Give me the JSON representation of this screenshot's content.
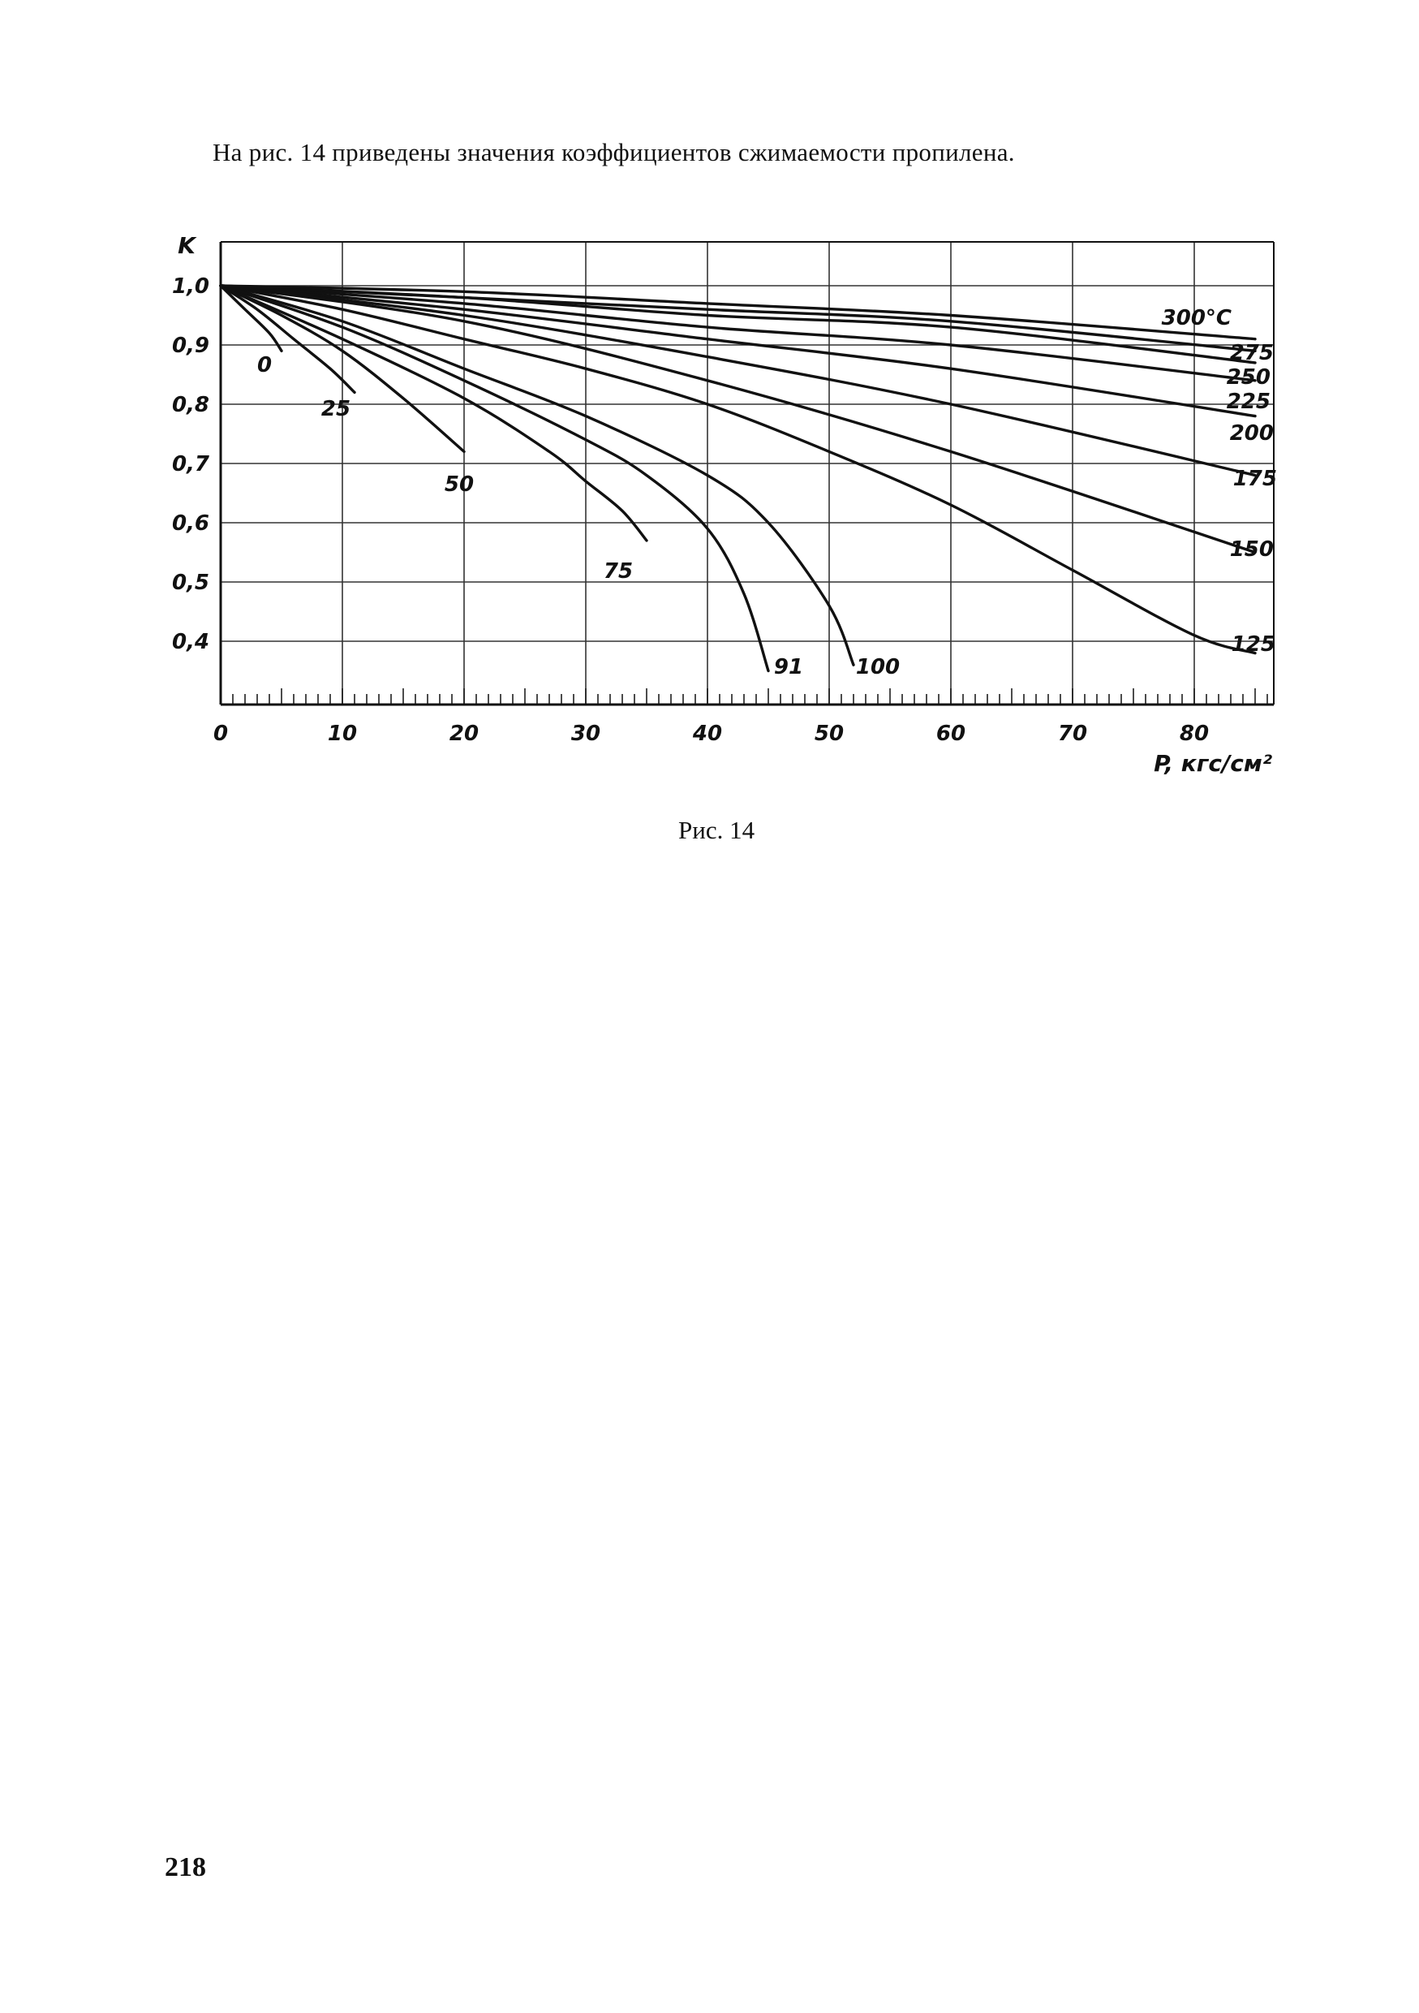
{
  "document": {
    "intro_text": "На рис. 14 приведены значения коэффициентов сжимаемости пропилена.",
    "caption": "Рис. 14",
    "page_number": "218"
  },
  "chart_data": {
    "type": "line",
    "title": "",
    "xlabel": "P, кгс/см²",
    "ylabel": "K",
    "xlim": [
      0,
      88
    ],
    "ylim": [
      0.3,
      1.05
    ],
    "x_ticks": [
      "0",
      "10",
      "20",
      "30",
      "40",
      "50",
      "60",
      "70",
      "80"
    ],
    "y_ticks": [
      "0,4",
      "0,5",
      "0,6",
      "0,7",
      "0,8",
      "0,9",
      "1,0"
    ],
    "grid": true,
    "series": [
      {
        "name": "0",
        "x": [
          0,
          2,
          4,
          5
        ],
        "y": [
          1.0,
          0.96,
          0.92,
          0.89
        ]
      },
      {
        "name": "25",
        "x": [
          0,
          3,
          6,
          9,
          11
        ],
        "y": [
          1.0,
          0.96,
          0.91,
          0.86,
          0.82
        ]
      },
      {
        "name": "50",
        "x": [
          0,
          5,
          10,
          15,
          20
        ],
        "y": [
          1.0,
          0.95,
          0.89,
          0.81,
          0.72
        ]
      },
      {
        "name": "75",
        "x": [
          0,
          10,
          20,
          27,
          30,
          33,
          35
        ],
        "y": [
          1.0,
          0.91,
          0.81,
          0.72,
          0.67,
          0.62,
          0.57
        ]
      },
      {
        "name": "91",
        "x": [
          0,
          10,
          20,
          30,
          35,
          40,
          43,
          45
        ],
        "y": [
          1.0,
          0.93,
          0.84,
          0.74,
          0.68,
          0.59,
          0.48,
          0.35
        ]
      },
      {
        "name": "100",
        "x": [
          0,
          10,
          20,
          30,
          40,
          45,
          50,
          52
        ],
        "y": [
          1.0,
          0.94,
          0.86,
          0.78,
          0.68,
          0.6,
          0.46,
          0.36
        ]
      },
      {
        "name": "125",
        "x": [
          0,
          10,
          20,
          30,
          40,
          50,
          60,
          70,
          80,
          85
        ],
        "y": [
          1.0,
          0.96,
          0.91,
          0.86,
          0.8,
          0.72,
          0.63,
          0.52,
          0.41,
          0.38
        ]
      },
      {
        "name": "150",
        "x": [
          0,
          20,
          40,
          60,
          85
        ],
        "y": [
          1.0,
          0.94,
          0.84,
          0.72,
          0.55
        ]
      },
      {
        "name": "175",
        "x": [
          0,
          20,
          40,
          60,
          85
        ],
        "y": [
          1.0,
          0.95,
          0.88,
          0.8,
          0.68
        ]
      },
      {
        "name": "200",
        "x": [
          0,
          20,
          40,
          60,
          85
        ],
        "y": [
          1.0,
          0.96,
          0.91,
          0.86,
          0.78
        ]
      },
      {
        "name": "225",
        "x": [
          0,
          20,
          40,
          60,
          85
        ],
        "y": [
          1.0,
          0.97,
          0.93,
          0.9,
          0.84
        ]
      },
      {
        "name": "250",
        "x": [
          0,
          20,
          40,
          60,
          85
        ],
        "y": [
          1.0,
          0.98,
          0.95,
          0.93,
          0.87
        ]
      },
      {
        "name": "275",
        "x": [
          0,
          20,
          40,
          60,
          85
        ],
        "y": [
          1.0,
          0.98,
          0.96,
          0.94,
          0.89
        ]
      },
      {
        "name": "300°C",
        "x": [
          0,
          20,
          40,
          60,
          85
        ],
        "y": [
          1.0,
          0.99,
          0.97,
          0.95,
          0.91
        ]
      }
    ]
  }
}
